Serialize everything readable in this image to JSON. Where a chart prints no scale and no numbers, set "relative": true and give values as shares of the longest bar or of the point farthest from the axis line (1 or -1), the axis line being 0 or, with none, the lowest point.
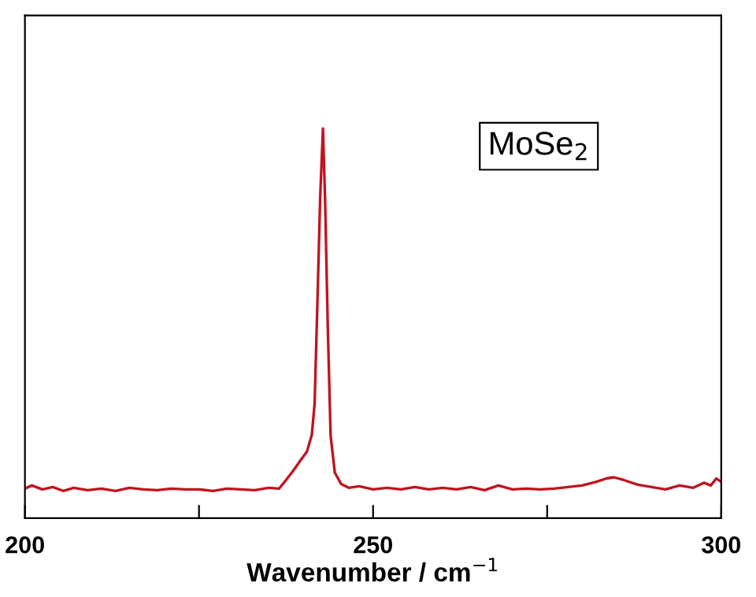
{
  "chart_data": {
    "type": "line",
    "relative": true,
    "xlabel": "Wavenumber / cm$^{−1}$",
    "xlim": [
      200,
      300
    ],
    "xticks": [
      200,
      {
        "value": 225,
        "label": null
      },
      250,
      {
        "value": 275,
        "label": null
      },
      300
    ],
    "annotations": [
      "MoSe$_{2}$"
    ],
    "grid": false,
    "legend": false,
    "marker": "none",
    "line_style": "solid",
    "series": [
      {
        "color": "#c0141e",
        "x": [
          200,
          201,
          202.5,
          204,
          205.5,
          207,
          209,
          211,
          213,
          215,
          217,
          219,
          221,
          223,
          225,
          227,
          229,
          231,
          233,
          235,
          236.5,
          237.5,
          238.5,
          239.4,
          240.5,
          241.2,
          241.6,
          242.0,
          242.4,
          242.8,
          243.1,
          243.5,
          243.9,
          244.5,
          245.4,
          246.5,
          248,
          250,
          252,
          254,
          256,
          258,
          260,
          262,
          264,
          266,
          268,
          270,
          272,
          274,
          276,
          278,
          280,
          282,
          283.5,
          284.6,
          286,
          288,
          290,
          292,
          294,
          296,
          297.5,
          298.5,
          299.3,
          300
        ],
        "values": [
          0.076,
          0.084,
          0.074,
          0.08,
          0.07,
          0.078,
          0.072,
          0.076,
          0.07,
          0.078,
          0.074,
          0.072,
          0.076,
          0.074,
          0.074,
          0.07,
          0.076,
          0.074,
          0.072,
          0.078,
          0.076,
          0.098,
          0.121,
          0.144,
          0.171,
          0.214,
          0.293,
          0.551,
          0.822,
          1.0,
          0.822,
          0.486,
          0.212,
          0.117,
          0.088,
          0.078,
          0.082,
          0.074,
          0.078,
          0.074,
          0.08,
          0.074,
          0.078,
          0.074,
          0.08,
          0.072,
          0.084,
          0.074,
          0.076,
          0.074,
          0.076,
          0.08,
          0.084,
          0.093,
          0.102,
          0.105,
          0.098,
          0.086,
          0.08,
          0.074,
          0.084,
          0.078,
          0.091,
          0.084,
          0.102,
          0.093
        ]
      }
    ]
  }
}
